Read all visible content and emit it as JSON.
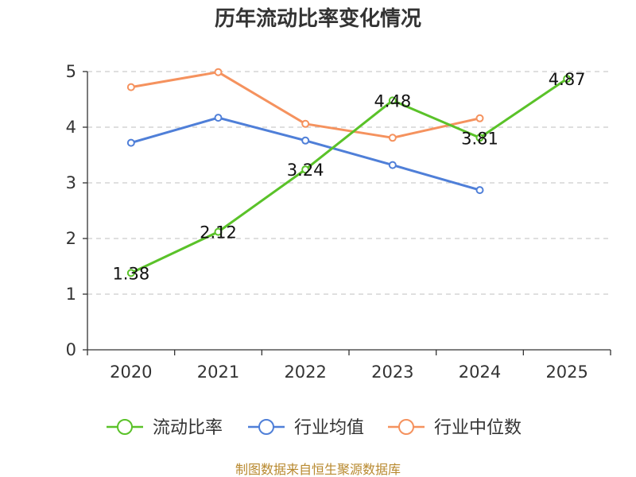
{
  "chart_data": {
    "type": "line",
    "title": "历年流动比率变化情况",
    "categories": [
      "2020",
      "2021",
      "2022",
      "2023",
      "2024",
      "2025"
    ],
    "ylim": [
      0,
      5
    ],
    "yticks": [
      "0",
      "1",
      "2",
      "3",
      "4",
      "5"
    ],
    "grid": true,
    "legend_position": "bottom",
    "series": [
      {
        "name": "流动比率",
        "color": "#5ac229",
        "values": [
          1.38,
          2.12,
          3.24,
          4.48,
          3.81,
          4.87
        ],
        "labels": [
          "1.38",
          "2.12",
          "3.24",
          "4.48",
          "3.81",
          "4.87"
        ]
      },
      {
        "name": "行业均值",
        "color": "#4f7fd8",
        "values": [
          3.72,
          4.17,
          3.76,
          3.32,
          2.87,
          null
        ],
        "labels": null
      },
      {
        "name": "行业中位数",
        "color": "#f5925e",
        "values": [
          4.72,
          4.99,
          4.06,
          3.81,
          4.16,
          null
        ],
        "labels": null
      }
    ]
  },
  "source_text": "制图数据来自恒生聚源数据库"
}
